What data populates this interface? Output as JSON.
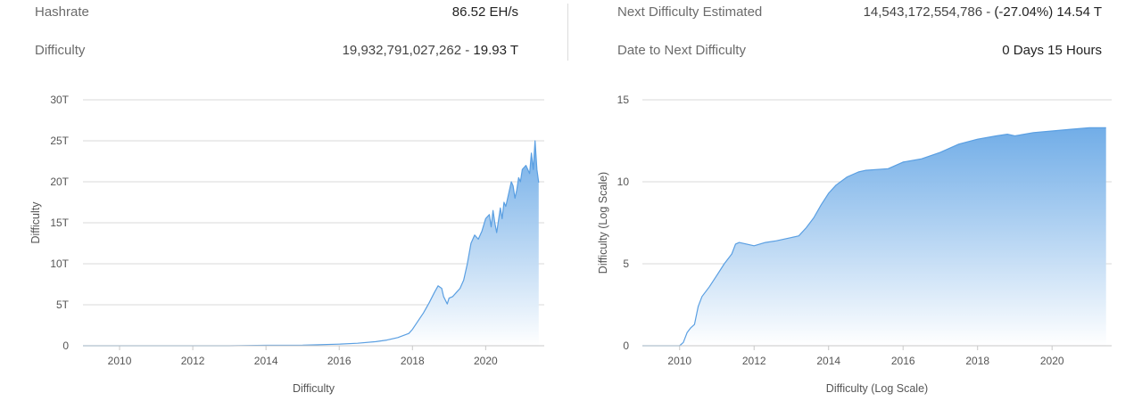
{
  "stats": {
    "hashrate_label": "Hashrate",
    "hashrate_value": "86.52 EH/s",
    "difficulty_label": "Difficulty",
    "difficulty_value_main": "19,932,791,027,262 - ",
    "difficulty_value_short": "19.93 T",
    "next_label": "Next Difficulty Estimated",
    "next_value_main": "14,543,172,554,786 - ",
    "next_value_change": "(-27.04%) 14.54 T",
    "date_label": "Date to Next Difficulty",
    "date_value": "0 Days 15 Hours"
  },
  "colors": {
    "line": "#5a9fe2",
    "fill_top": "#6aa9e6",
    "fill_bottom": "#ffffff",
    "grid": "#d9d9d9"
  },
  "chart_data": [
    {
      "type": "area",
      "ylabel": "Difficulty",
      "xlabel": "Difficulty",
      "xlim": [
        2009.0,
        2021.6
      ],
      "ylim": [
        0,
        30
      ],
      "x_ticks": [
        "2010",
        "2012",
        "2014",
        "2016",
        "2018",
        "2020"
      ],
      "y_ticks": [
        "0",
        "5T",
        "10T",
        "15T",
        "20T",
        "25T",
        "30T"
      ],
      "grid": true,
      "series": [
        {
          "x": [
            2009.0,
            2010.0,
            2011.0,
            2012.0,
            2013.0,
            2014.0,
            2015.0,
            2016.0,
            2016.5,
            2017.0,
            2017.3,
            2017.6,
            2017.9,
            2018.0,
            2018.15,
            2018.3,
            2018.45,
            2018.6,
            2018.7,
            2018.8,
            2018.85,
            2018.95,
            2019.0,
            2019.1,
            2019.2,
            2019.3,
            2019.4,
            2019.5,
            2019.6,
            2019.7,
            2019.8,
            2019.9,
            2020.0,
            2020.1,
            2020.15,
            2020.2,
            2020.25,
            2020.3,
            2020.4,
            2020.45,
            2020.5,
            2020.55,
            2020.6,
            2020.7,
            2020.75,
            2020.8,
            2020.85,
            2020.9,
            2020.95,
            2021.0,
            2021.1,
            2021.2,
            2021.25,
            2021.3,
            2021.35,
            2021.4,
            2021.45
          ],
          "y": [
            0.0,
            0.0,
            0.0,
            0.0,
            0.0,
            0.05,
            0.07,
            0.2,
            0.3,
            0.5,
            0.7,
            1.0,
            1.5,
            2.0,
            3.0,
            4.0,
            5.2,
            6.5,
            7.3,
            7.0,
            6.0,
            5.1,
            5.8,
            6.0,
            6.5,
            7.0,
            8.0,
            10.0,
            12.5,
            13.5,
            13.0,
            14.0,
            15.5,
            16.0,
            14.5,
            16.5,
            15.0,
            13.8,
            16.8,
            15.5,
            17.5,
            17.0,
            18.0,
            20.0,
            19.5,
            18.0,
            19.0,
            20.5,
            20.0,
            21.5,
            22.0,
            21.0,
            23.5,
            21.5,
            25.0,
            21.5,
            19.9
          ]
        }
      ]
    },
    {
      "type": "area",
      "ylabel": "Difficulty (Log Scale)",
      "xlabel": "Difficulty (Log Scale)",
      "xlim": [
        2009.0,
        2021.6
      ],
      "ylim": [
        0,
        15
      ],
      "x_ticks": [
        "2010",
        "2012",
        "2014",
        "2016",
        "2018",
        "2020"
      ],
      "y_ticks": [
        "0",
        "5",
        "10",
        "15"
      ],
      "grid": true,
      "series": [
        {
          "x": [
            2009.0,
            2009.5,
            2010.0,
            2010.1,
            2010.2,
            2010.3,
            2010.4,
            2010.5,
            2010.6,
            2010.8,
            2011.0,
            2011.2,
            2011.4,
            2011.5,
            2011.6,
            2011.8,
            2012.0,
            2012.3,
            2012.6,
            2013.0,
            2013.2,
            2013.4,
            2013.6,
            2013.8,
            2014.0,
            2014.2,
            2014.5,
            2014.8,
            2015.0,
            2015.3,
            2015.6,
            2016.0,
            2016.5,
            2017.0,
            2017.5,
            2018.0,
            2018.5,
            2018.8,
            2019.0,
            2019.5,
            2020.0,
            2020.5,
            2021.0,
            2021.45
          ],
          "y": [
            0.0,
            0.0,
            0.0,
            0.2,
            0.8,
            1.1,
            1.3,
            2.4,
            3.0,
            3.6,
            4.3,
            5.0,
            5.6,
            6.2,
            6.3,
            6.2,
            6.1,
            6.3,
            6.4,
            6.6,
            6.7,
            7.2,
            7.8,
            8.6,
            9.3,
            9.8,
            10.3,
            10.6,
            10.7,
            10.75,
            10.8,
            11.2,
            11.4,
            11.8,
            12.3,
            12.6,
            12.8,
            12.9,
            12.8,
            13.0,
            13.1,
            13.2,
            13.3,
            13.3
          ]
        }
      ]
    }
  ]
}
